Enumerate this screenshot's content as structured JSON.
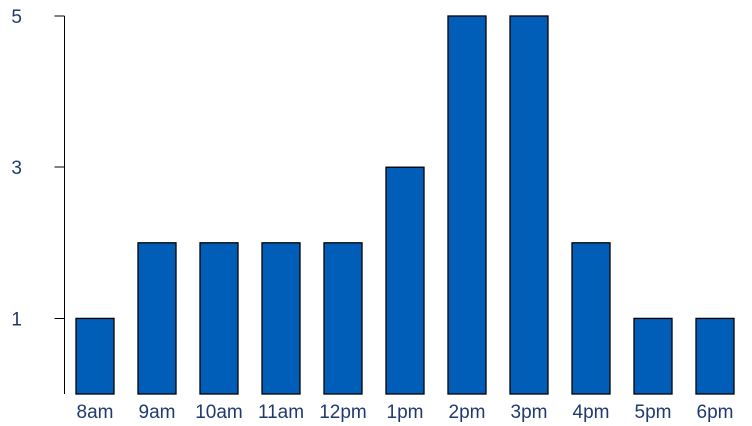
{
  "chart_data": {
    "type": "bar",
    "categories": [
      "8am",
      "9am",
      "10am",
      "11am",
      "12pm",
      "1pm",
      "2pm",
      "3pm",
      "4pm",
      "5pm",
      "6pm"
    ],
    "values": [
      1,
      2,
      2,
      2,
      2,
      3,
      5,
      5,
      2,
      1,
      1
    ],
    "yticks": [
      1,
      3,
      5
    ],
    "ylim": [
      0,
      5
    ],
    "title": "",
    "xlabel": "",
    "ylabel": "",
    "bar_color": "#005eb8",
    "grid": false,
    "legend": "none"
  }
}
